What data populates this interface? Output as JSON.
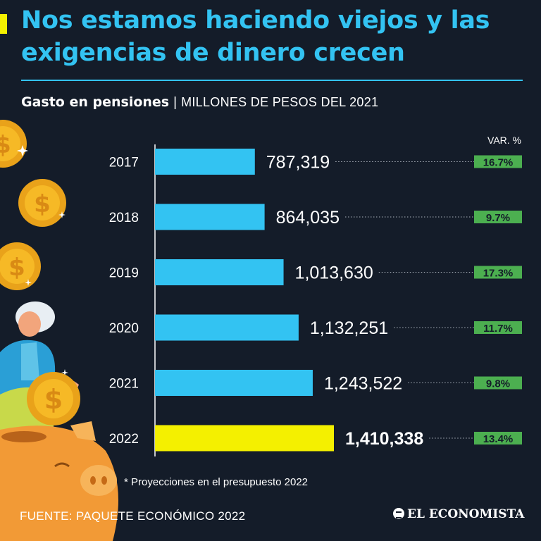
{
  "header": {
    "title": "Nos estamos haciendo viejos y las exigencias de dinero crecen",
    "subtitle_bold": "Gasto en pensiones",
    "subtitle_separator": "|",
    "subtitle_units": "MILLONES DE PESOS DEL 2021"
  },
  "chart_data": {
    "type": "bar",
    "orientation": "horizontal",
    "title": "Gasto en pensiones",
    "units": "MILLONES DE PESOS DEL 2021",
    "categories": [
      "2017",
      "2018",
      "2019",
      "2020",
      "2021",
      "2022"
    ],
    "values": [
      787319,
      864035,
      1013630,
      1132251,
      1243522,
      1410338
    ],
    "value_labels": [
      "787,319",
      "864,035",
      "1,013,630",
      "1,132,251",
      "1,243,522",
      "1,410,338"
    ],
    "var_header": "VAR. %",
    "variations": [
      "16.7%",
      "9.7%",
      "17.3%",
      "11.7%",
      "9.8%",
      "13.4%"
    ],
    "highlight_index": 5,
    "xlim": [
      0,
      1410338
    ]
  },
  "colors": {
    "background": "#141c29",
    "title": "#33c3f2",
    "bar": "#33c3f2",
    "bar_highlight": "#f4f000",
    "badge": "#4caf50",
    "accent": "#f4f000"
  },
  "footer": {
    "note": "* Proyecciones en el presupuesto 2022",
    "source": "FUENTE: PAQUETE ECONÓMICO 2022",
    "brand": "EL ECONOMISTA"
  },
  "illustration": {
    "icons": [
      "coin-icon",
      "pensioner-illustration",
      "piggy-bank-icon"
    ]
  }
}
